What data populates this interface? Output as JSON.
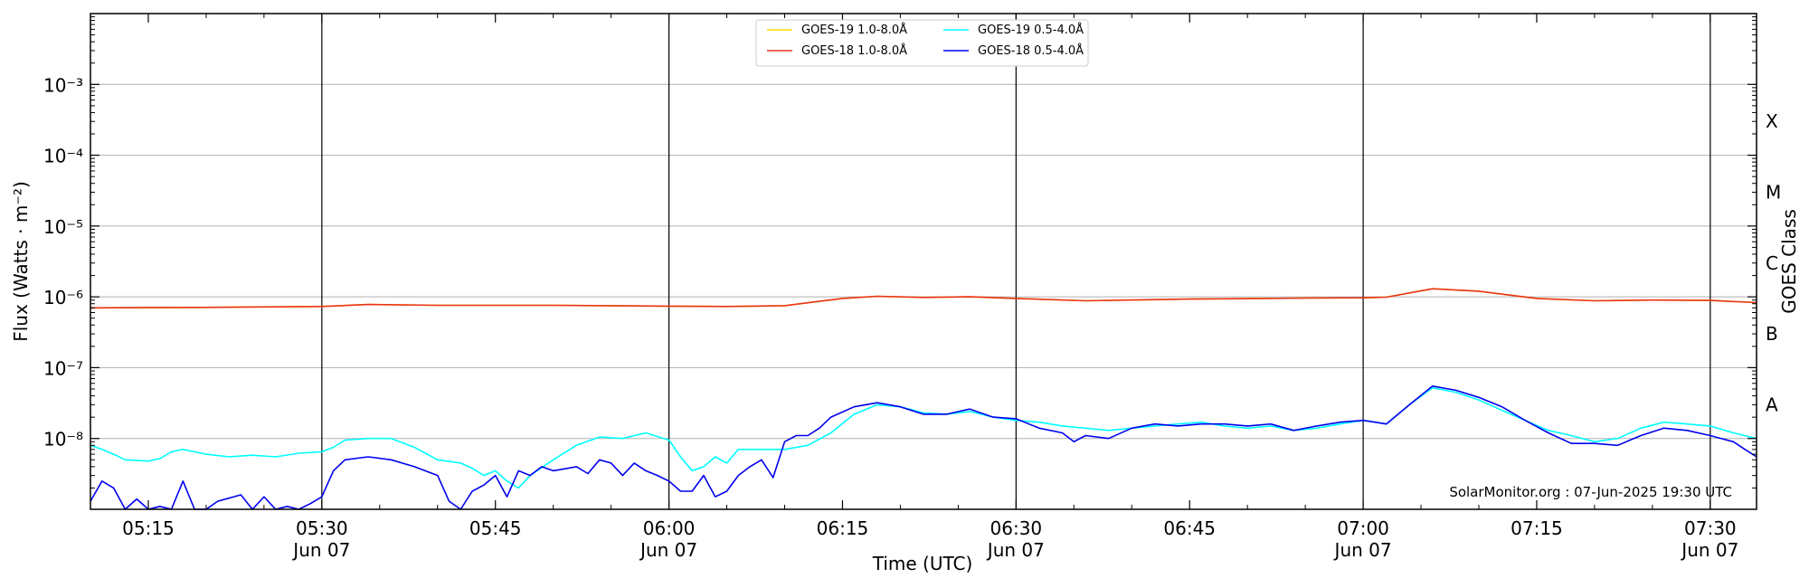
{
  "chart_data": {
    "type": "line",
    "xlabel": "Time (UTC)",
    "ylabel": "Flux (Watts · m⁻²)",
    "right_axis_label": "GOES Class",
    "y_scale": "log",
    "ylim": [
      1e-09,
      0.01
    ],
    "y_ticks": [
      {
        "value": 1e-08,
        "label": "10⁻⁸"
      },
      {
        "value": 1e-07,
        "label": "10⁻⁷"
      },
      {
        "value": 1e-06,
        "label": "10⁻⁶"
      },
      {
        "value": 1e-05,
        "label": "10⁻⁵"
      },
      {
        "value": 0.0001,
        "label": "10⁻⁴"
      },
      {
        "value": 0.001,
        "label": "10⁻³"
      }
    ],
    "goes_classes": [
      {
        "label": "A",
        "value": 3e-08
      },
      {
        "label": "B",
        "value": 3e-07
      },
      {
        "label": "C",
        "value": 3e-06
      },
      {
        "label": "M",
        "value": 3e-05
      },
      {
        "label": "X",
        "value": 0.0003
      }
    ],
    "x_range": [
      "05:10",
      "07:34"
    ],
    "x_ticks": [
      {
        "time": "05:15",
        "label": "05:15",
        "sub": ""
      },
      {
        "time": "05:30",
        "label": "05:30",
        "sub": "Jun 07"
      },
      {
        "time": "05:45",
        "label": "05:45",
        "sub": ""
      },
      {
        "time": "06:00",
        "label": "06:00",
        "sub": "Jun 07"
      },
      {
        "time": "06:15",
        "label": "06:15",
        "sub": ""
      },
      {
        "time": "06:30",
        "label": "06:30",
        "sub": "Jun 07"
      },
      {
        "time": "06:45",
        "label": "06:45",
        "sub": ""
      },
      {
        "time": "07:00",
        "label": "07:00",
        "sub": "Jun 07"
      },
      {
        "time": "07:15",
        "label": "07:15",
        "sub": ""
      },
      {
        "time": "07:30",
        "label": "07:30",
        "sub": "Jun 07"
      }
    ],
    "vertical_lines": [
      "05:30",
      "06:00",
      "06:30",
      "07:00",
      "07:30"
    ],
    "grid": "horizontal",
    "legend_position": "top-center",
    "annotation": "SolarMonitor.org : 07-Jun-2025 19:30 UTC",
    "series": [
      {
        "name": "GOES-19 1.0-8.0Å",
        "color": "#ffd700",
        "points": [
          [
            "05:10",
            7e-07
          ],
          [
            "05:20",
            7.1e-07
          ],
          [
            "05:30",
            7.3e-07
          ],
          [
            "05:34",
            7.8e-07
          ],
          [
            "05:40",
            7.6e-07
          ],
          [
            "05:50",
            7.6e-07
          ],
          [
            "06:00",
            7.4e-07
          ],
          [
            "06:05",
            7.3e-07
          ],
          [
            "06:10",
            7.5e-07
          ],
          [
            "06:15",
            9.5e-07
          ],
          [
            "06:18",
            1.02e-06
          ],
          [
            "06:22",
            9.8e-07
          ],
          [
            "06:26",
            1e-06
          ],
          [
            "06:30",
            9.5e-07
          ],
          [
            "06:36",
            8.8e-07
          ],
          [
            "06:45",
            9.3e-07
          ],
          [
            "06:55",
            9.6e-07
          ],
          [
            "07:00",
            9.7e-07
          ],
          [
            "07:02",
            9.9e-07
          ],
          [
            "07:06",
            1.3e-06
          ],
          [
            "07:10",
            1.2e-06
          ],
          [
            "07:15",
            9.5e-07
          ],
          [
            "07:20",
            8.8e-07
          ],
          [
            "07:25",
            9e-07
          ],
          [
            "07:30",
            8.9e-07
          ],
          [
            "07:34",
            8.3e-07
          ]
        ]
      },
      {
        "name": "GOES-18 1.0-8.0Å",
        "color": "#e8341c",
        "points": [
          [
            "05:10",
            7e-07
          ],
          [
            "05:20",
            7.1e-07
          ],
          [
            "05:30",
            7.3e-07
          ],
          [
            "05:34",
            7.8e-07
          ],
          [
            "05:40",
            7.6e-07
          ],
          [
            "05:50",
            7.6e-07
          ],
          [
            "06:00",
            7.4e-07
          ],
          [
            "06:05",
            7.3e-07
          ],
          [
            "06:10",
            7.5e-07
          ],
          [
            "06:15",
            9.5e-07
          ],
          [
            "06:18",
            1.02e-06
          ],
          [
            "06:22",
            9.8e-07
          ],
          [
            "06:26",
            1e-06
          ],
          [
            "06:30",
            9.5e-07
          ],
          [
            "06:36",
            8.8e-07
          ],
          [
            "06:45",
            9.3e-07
          ],
          [
            "06:55",
            9.6e-07
          ],
          [
            "07:00",
            9.7e-07
          ],
          [
            "07:02",
            9.9e-07
          ],
          [
            "07:06",
            1.3e-06
          ],
          [
            "07:10",
            1.2e-06
          ],
          [
            "07:15",
            9.5e-07
          ],
          [
            "07:20",
            8.8e-07
          ],
          [
            "07:25",
            9e-07
          ],
          [
            "07:30",
            8.9e-07
          ],
          [
            "07:34",
            8.3e-07
          ]
        ]
      },
      {
        "name": "GOES-19 0.5-4.0Å",
        "color": "#00ffff",
        "points": [
          [
            "05:10",
            8e-09
          ],
          [
            "05:11",
            7e-09
          ],
          [
            "05:12",
            6e-09
          ],
          [
            "05:13",
            5e-09
          ],
          [
            "05:15",
            4.8e-09
          ],
          [
            "05:16",
            5.2e-09
          ],
          [
            "05:17",
            6.5e-09
          ],
          [
            "05:18",
            7e-09
          ],
          [
            "05:20",
            6e-09
          ],
          [
            "05:22",
            5.5e-09
          ],
          [
            "05:24",
            5.8e-09
          ],
          [
            "05:26",
            5.5e-09
          ],
          [
            "05:28",
            6.2e-09
          ],
          [
            "05:30",
            6.5e-09
          ],
          [
            "05:31",
            7.5e-09
          ],
          [
            "05:32",
            9.5e-09
          ],
          [
            "05:34",
            1e-08
          ],
          [
            "05:36",
            1e-08
          ],
          [
            "05:38",
            7.5e-09
          ],
          [
            "05:40",
            5e-09
          ],
          [
            "05:42",
            4.5e-09
          ],
          [
            "05:43",
            3.8e-09
          ],
          [
            "05:44",
            3e-09
          ],
          [
            "05:45",
            3.5e-09
          ],
          [
            "05:46",
            2.5e-09
          ],
          [
            "05:47",
            2e-09
          ],
          [
            "05:48",
            3e-09
          ],
          [
            "05:50",
            5e-09
          ],
          [
            "05:52",
            8e-09
          ],
          [
            "05:54",
            1.05e-08
          ],
          [
            "05:56",
            1e-08
          ],
          [
            "05:58",
            1.2e-08
          ],
          [
            "06:00",
            9.5e-09
          ],
          [
            "06:01",
            5.5e-09
          ],
          [
            "06:02",
            3.5e-09
          ],
          [
            "06:03",
            4e-09
          ],
          [
            "06:04",
            5.5e-09
          ],
          [
            "06:05",
            4.5e-09
          ],
          [
            "06:06",
            7e-09
          ],
          [
            "06:08",
            7e-09
          ],
          [
            "06:10",
            7e-09
          ],
          [
            "06:12",
            8e-09
          ],
          [
            "06:14",
            1.2e-08
          ],
          [
            "06:16",
            2.2e-08
          ],
          [
            "06:18",
            3e-08
          ],
          [
            "06:20",
            2.8e-08
          ],
          [
            "06:22",
            2.3e-08
          ],
          [
            "06:24",
            2.2e-08
          ],
          [
            "06:26",
            2.4e-08
          ],
          [
            "06:28",
            2e-08
          ],
          [
            "06:30",
            1.8e-08
          ],
          [
            "06:32",
            1.7e-08
          ],
          [
            "06:34",
            1.5e-08
          ],
          [
            "06:36",
            1.4e-08
          ],
          [
            "06:38",
            1.3e-08
          ],
          [
            "06:40",
            1.4e-08
          ],
          [
            "06:42",
            1.5e-08
          ],
          [
            "06:44",
            1.6e-08
          ],
          [
            "06:46",
            1.7e-08
          ],
          [
            "06:48",
            1.5e-08
          ],
          [
            "06:50",
            1.4e-08
          ],
          [
            "06:52",
            1.5e-08
          ],
          [
            "06:54",
            1.3e-08
          ],
          [
            "06:56",
            1.4e-08
          ],
          [
            "06:58",
            1.6e-08
          ],
          [
            "07:00",
            1.8e-08
          ],
          [
            "07:02",
            1.6e-08
          ],
          [
            "07:04",
            3e-08
          ],
          [
            "07:06",
            5.2e-08
          ],
          [
            "07:08",
            4.5e-08
          ],
          [
            "07:10",
            3.5e-08
          ],
          [
            "07:12",
            2.5e-08
          ],
          [
            "07:14",
            1.8e-08
          ],
          [
            "07:16",
            1.3e-08
          ],
          [
            "07:18",
            1.1e-08
          ],
          [
            "07:20",
            9e-09
          ],
          [
            "07:22",
            1e-08
          ],
          [
            "07:24",
            1.4e-08
          ],
          [
            "07:26",
            1.7e-08
          ],
          [
            "07:28",
            1.6e-08
          ],
          [
            "07:30",
            1.5e-08
          ],
          [
            "07:32",
            1.2e-08
          ],
          [
            "07:34",
            1e-08
          ]
        ]
      },
      {
        "name": "GOES-18 0.5-4.0Å",
        "color": "#0000ee",
        "points": [
          [
            "05:10",
            1.3e-09
          ],
          [
            "05:11",
            2.5e-09
          ],
          [
            "05:12",
            2e-09
          ],
          [
            "05:13",
            1e-09
          ],
          [
            "05:14",
            1.4e-09
          ],
          [
            "05:15",
            1e-09
          ],
          [
            "05:16",
            1.1e-09
          ],
          [
            "05:17",
            1e-09
          ],
          [
            "05:18",
            2.5e-09
          ],
          [
            "05:19",
            1e-09
          ],
          [
            "05:20",
            1e-09
          ],
          [
            "05:21",
            1.3e-09
          ],
          [
            "05:23",
            1.6e-09
          ],
          [
            "05:24",
            1e-09
          ],
          [
            "05:25",
            1.5e-09
          ],
          [
            "05:26",
            1e-09
          ],
          [
            "05:27",
            1.1e-09
          ],
          [
            "05:28",
            1e-09
          ],
          [
            "05:29",
            1.2e-09
          ],
          [
            "05:30",
            1.5e-09
          ],
          [
            "05:31",
            3.5e-09
          ],
          [
            "05:32",
            5e-09
          ],
          [
            "05:34",
            5.5e-09
          ],
          [
            "05:36",
            5e-09
          ],
          [
            "05:38",
            4e-09
          ],
          [
            "05:40",
            3e-09
          ],
          [
            "05:41",
            1.3e-09
          ],
          [
            "05:42",
            1e-09
          ],
          [
            "05:43",
            1.8e-09
          ],
          [
            "05:44",
            2.2e-09
          ],
          [
            "05:45",
            3e-09
          ],
          [
            "05:46",
            1.5e-09
          ],
          [
            "05:47",
            3.5e-09
          ],
          [
            "05:48",
            3e-09
          ],
          [
            "05:49",
            4e-09
          ],
          [
            "05:50",
            3.5e-09
          ],
          [
            "05:52",
            4e-09
          ],
          [
            "05:53",
            3.2e-09
          ],
          [
            "05:54",
            5e-09
          ],
          [
            "05:55",
            4.5e-09
          ],
          [
            "05:56",
            3e-09
          ],
          [
            "05:57",
            4.5e-09
          ],
          [
            "05:58",
            3.5e-09
          ],
          [
            "05:59",
            3e-09
          ],
          [
            "06:00",
            2.5e-09
          ],
          [
            "06:01",
            1.8e-09
          ],
          [
            "06:02",
            1.8e-09
          ],
          [
            "06:03",
            3e-09
          ],
          [
            "06:04",
            1.5e-09
          ],
          [
            "06:05",
            1.8e-09
          ],
          [
            "06:06",
            3e-09
          ],
          [
            "06:07",
            4e-09
          ],
          [
            "06:08",
            5e-09
          ],
          [
            "06:09",
            2.8e-09
          ],
          [
            "06:10",
            9e-09
          ],
          [
            "06:11",
            1.1e-08
          ],
          [
            "06:12",
            1.1e-08
          ],
          [
            "06:13",
            1.4e-08
          ],
          [
            "06:14",
            2e-08
          ],
          [
            "06:16",
            2.8e-08
          ],
          [
            "06:18",
            3.2e-08
          ],
          [
            "06:20",
            2.8e-08
          ],
          [
            "06:22",
            2.2e-08
          ],
          [
            "06:24",
            2.2e-08
          ],
          [
            "06:26",
            2.6e-08
          ],
          [
            "06:28",
            2e-08
          ],
          [
            "06:30",
            1.9e-08
          ],
          [
            "06:32",
            1.4e-08
          ],
          [
            "06:34",
            1.2e-08
          ],
          [
            "06:35",
            9e-09
          ],
          [
            "06:36",
            1.1e-08
          ],
          [
            "06:38",
            1e-08
          ],
          [
            "06:40",
            1.4e-08
          ],
          [
            "06:42",
            1.6e-08
          ],
          [
            "06:44",
            1.5e-08
          ],
          [
            "06:46",
            1.6e-08
          ],
          [
            "06:48",
            1.6e-08
          ],
          [
            "06:50",
            1.5e-08
          ],
          [
            "06:52",
            1.6e-08
          ],
          [
            "06:54",
            1.3e-08
          ],
          [
            "06:56",
            1.5e-08
          ],
          [
            "06:58",
            1.7e-08
          ],
          [
            "07:00",
            1.8e-08
          ],
          [
            "07:02",
            1.6e-08
          ],
          [
            "07:04",
            3e-08
          ],
          [
            "07:06",
            5.5e-08
          ],
          [
            "07:08",
            4.8e-08
          ],
          [
            "07:10",
            3.8e-08
          ],
          [
            "07:12",
            2.8e-08
          ],
          [
            "07:14",
            1.8e-08
          ],
          [
            "07:16",
            1.2e-08
          ],
          [
            "07:18",
            8.5e-09
          ],
          [
            "07:20",
            8.5e-09
          ],
          [
            "07:22",
            8e-09
          ],
          [
            "07:24",
            1.1e-08
          ],
          [
            "07:26",
            1.4e-08
          ],
          [
            "07:28",
            1.3e-08
          ],
          [
            "07:30",
            1.1e-08
          ],
          [
            "07:32",
            9e-09
          ],
          [
            "07:33",
            7e-09
          ],
          [
            "07:34",
            5.5e-09
          ]
        ]
      }
    ]
  }
}
